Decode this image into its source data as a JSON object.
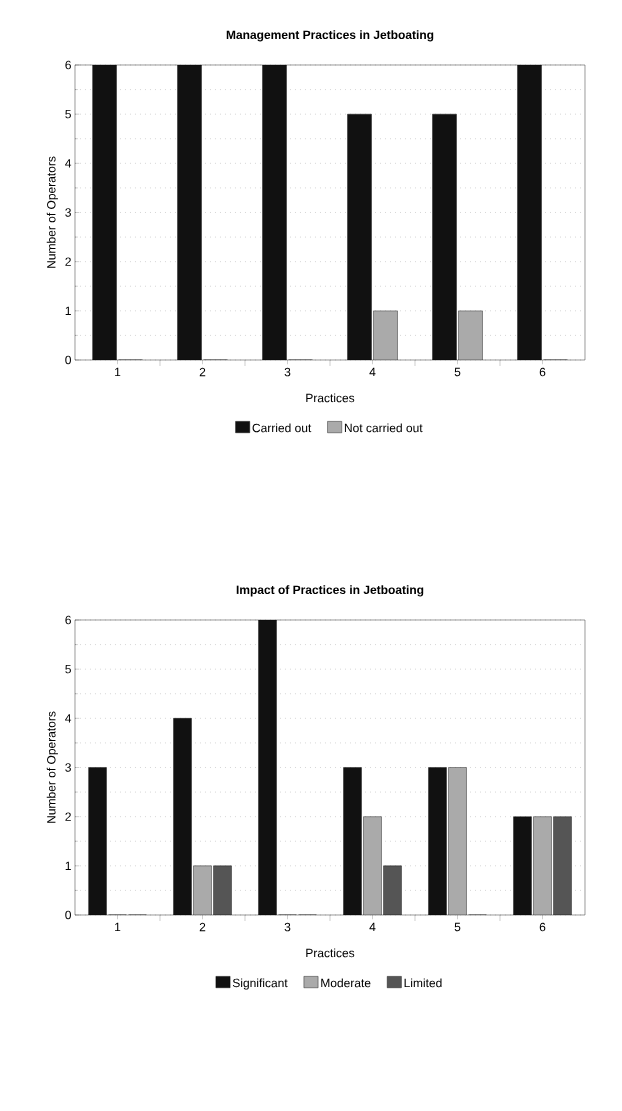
{
  "chart_data": [
    {
      "type": "bar",
      "title": "Management Practices in Jetboating",
      "xlabel": "Practices",
      "ylabel": "Number of Operators",
      "categories": [
        "1",
        "2",
        "3",
        "4",
        "5",
        "6"
      ],
      "series": [
        {
          "name": "Carried out",
          "color": "#111111",
          "values": [
            6,
            6,
            6,
            5,
            5,
            6
          ]
        },
        {
          "name": "Not carried out",
          "color": "#aaaaaa",
          "values": [
            0,
            0,
            0,
            1,
            1,
            0
          ]
        }
      ],
      "ylim": [
        0,
        6
      ],
      "yticks": [
        0,
        1,
        2,
        3,
        4,
        5,
        6
      ],
      "grid": "y",
      "legend": "bottom"
    },
    {
      "type": "bar",
      "title": "Impact of Practices in Jetboating",
      "xlabel": "Practices",
      "ylabel": "Number of Operators",
      "categories": [
        "1",
        "2",
        "3",
        "4",
        "5",
        "6"
      ],
      "series": [
        {
          "name": "Significant",
          "color": "#111111",
          "values": [
            3,
            4,
            6,
            3,
            3,
            2
          ]
        },
        {
          "name": "Moderate",
          "color": "#aaaaaa",
          "values": [
            0,
            1,
            0,
            2,
            3,
            2
          ]
        },
        {
          "name": "Limited",
          "color": "#555555",
          "values": [
            0,
            1,
            0,
            1,
            0,
            2
          ]
        }
      ],
      "ylim": [
        0,
        6
      ],
      "yticks": [
        0,
        1,
        2,
        3,
        4,
        5,
        6
      ],
      "grid": "y",
      "legend": "bottom"
    }
  ]
}
